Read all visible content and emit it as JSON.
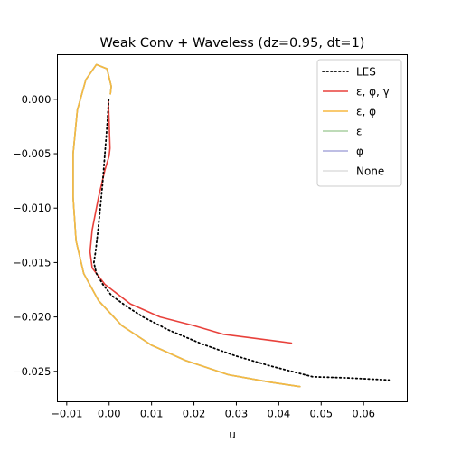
{
  "chart_data": {
    "type": "line",
    "title": "Weak Conv + Waveless (dz=0.95, dt=1)",
    "xlabel": "u",
    "ylabel": "",
    "xlim": [
      -0.0122,
      0.0703
    ],
    "ylim": [
      -0.0278,
      0.0041
    ],
    "xticks": [
      -0.01,
      0.0,
      0.01,
      0.02,
      0.03,
      0.04,
      0.05,
      0.06
    ],
    "xtick_labels": [
      "−0.01",
      "0.00",
      "0.01",
      "0.02",
      "0.03",
      "0.04",
      "0.05",
      "0.06"
    ],
    "yticks": [
      0.0,
      -0.005,
      -0.01,
      -0.015,
      -0.02,
      -0.025
    ],
    "ytick_labels": [
      "0.000",
      "−0.005",
      "−0.010",
      "−0.015",
      "−0.020",
      "−0.025"
    ],
    "grid": false,
    "legend_position": "top-right",
    "series": [
      {
        "name": "LES",
        "color": "#000000",
        "style": "dotted",
        "points": [
          [
            -0.0001,
            0.0
          ],
          [
            -0.0004,
            -0.002
          ],
          [
            -0.0008,
            -0.004
          ],
          [
            -0.0012,
            -0.006
          ],
          [
            -0.0016,
            -0.008
          ],
          [
            -0.0021,
            -0.01
          ],
          [
            -0.0026,
            -0.012
          ],
          [
            -0.0032,
            -0.014
          ],
          [
            -0.0036,
            -0.015
          ],
          [
            -0.003,
            -0.016
          ],
          [
            -0.0015,
            -0.017
          ],
          [
            0.0005,
            -0.018
          ],
          [
            0.004,
            -0.019
          ],
          [
            0.008,
            -0.02
          ],
          [
            0.014,
            -0.0212
          ],
          [
            0.022,
            -0.0225
          ],
          [
            0.03,
            -0.0236
          ],
          [
            0.038,
            -0.0245
          ],
          [
            0.044,
            -0.0251
          ],
          [
            0.048,
            -0.0255
          ],
          [
            0.056,
            -0.0256
          ],
          [
            0.066,
            -0.0258
          ]
        ]
      },
      {
        "name": "ε, φ, γ",
        "color": "#e8413b",
        "style": "solid",
        "points": [
          [
            -0.0002,
            0.0
          ],
          [
            0.0,
            -0.002
          ],
          [
            0.0002,
            -0.0045
          ],
          [
            0.0,
            -0.0052
          ],
          [
            -0.001,
            -0.0065
          ],
          [
            -0.0025,
            -0.009
          ],
          [
            -0.004,
            -0.012
          ],
          [
            -0.0045,
            -0.014
          ],
          [
            -0.004,
            -0.0155
          ],
          [
            -0.001,
            -0.017
          ],
          [
            0.005,
            -0.0188
          ],
          [
            0.012,
            -0.02
          ],
          [
            0.02,
            -0.0208
          ],
          [
            0.027,
            -0.0216
          ],
          [
            0.033,
            -0.0219
          ],
          [
            0.039,
            -0.0222
          ],
          [
            0.043,
            -0.0224
          ]
        ]
      },
      {
        "name": "ε, φ",
        "color": "#f7b940",
        "style": "solid",
        "points": [
          [
            0.0003,
            0.0005
          ],
          [
            0.0005,
            0.0012
          ],
          [
            -0.0005,
            0.0028
          ],
          [
            -0.003,
            0.0032
          ],
          [
            -0.0055,
            0.0018
          ],
          [
            -0.0075,
            -0.001
          ],
          [
            -0.0085,
            -0.005
          ],
          [
            -0.0085,
            -0.009
          ],
          [
            -0.0078,
            -0.013
          ],
          [
            -0.006,
            -0.016
          ],
          [
            -0.0025,
            -0.0185
          ],
          [
            0.003,
            -0.0208
          ],
          [
            0.01,
            -0.0226
          ],
          [
            0.018,
            -0.024
          ],
          [
            0.028,
            -0.0253
          ],
          [
            0.038,
            -0.026
          ],
          [
            0.045,
            -0.0264
          ]
        ]
      },
      {
        "name": "ε",
        "color": "#a9cfa0",
        "style": "solid",
        "points": [
          [
            0.0003,
            0.0005
          ],
          [
            0.0005,
            0.0012
          ],
          [
            -0.0005,
            0.0028
          ],
          [
            -0.003,
            0.0032
          ],
          [
            -0.0055,
            0.0018
          ],
          [
            -0.0075,
            -0.001
          ],
          [
            -0.0085,
            -0.005
          ],
          [
            -0.0085,
            -0.009
          ],
          [
            -0.0078,
            -0.013
          ],
          [
            -0.006,
            -0.016
          ],
          [
            -0.0025,
            -0.0185
          ],
          [
            0.003,
            -0.0208
          ],
          [
            0.01,
            -0.0226
          ],
          [
            0.018,
            -0.024
          ],
          [
            0.028,
            -0.0253
          ],
          [
            0.038,
            -0.026
          ],
          [
            0.045,
            -0.0264
          ]
        ]
      },
      {
        "name": "φ",
        "color": "#a9a9dc",
        "style": "solid",
        "points": [
          [
            0.0003,
            0.0005
          ],
          [
            0.0005,
            0.0012
          ],
          [
            -0.0005,
            0.0028
          ],
          [
            -0.003,
            0.0032
          ],
          [
            -0.0055,
            0.0018
          ],
          [
            -0.0075,
            -0.001
          ],
          [
            -0.0085,
            -0.005
          ],
          [
            -0.0085,
            -0.009
          ],
          [
            -0.0078,
            -0.013
          ],
          [
            -0.006,
            -0.016
          ],
          [
            -0.0025,
            -0.0185
          ],
          [
            0.003,
            -0.0208
          ],
          [
            0.01,
            -0.0226
          ],
          [
            0.018,
            -0.024
          ],
          [
            0.028,
            -0.0253
          ],
          [
            0.038,
            -0.026
          ],
          [
            0.045,
            -0.0264
          ]
        ]
      },
      {
        "name": "None",
        "color": "#a6a6a6",
        "style": "solid",
        "points": [
          [
            0.0003,
            0.0005
          ],
          [
            0.0005,
            0.0012
          ],
          [
            -0.0005,
            0.0028
          ],
          [
            -0.003,
            0.0032
          ],
          [
            -0.0055,
            0.0018
          ],
          [
            -0.0075,
            -0.001
          ],
          [
            -0.0085,
            -0.005
          ],
          [
            -0.0085,
            -0.009
          ],
          [
            -0.0078,
            -0.013
          ],
          [
            -0.006,
            -0.016
          ],
          [
            -0.0025,
            -0.0185
          ],
          [
            0.003,
            -0.0208
          ],
          [
            0.01,
            -0.0226
          ],
          [
            0.018,
            -0.024
          ],
          [
            0.028,
            -0.0253
          ],
          [
            0.038,
            -0.026
          ],
          [
            0.045,
            -0.0264
          ]
        ]
      }
    ],
    "legend_colors": {
      "None": "#dddddd"
    }
  }
}
